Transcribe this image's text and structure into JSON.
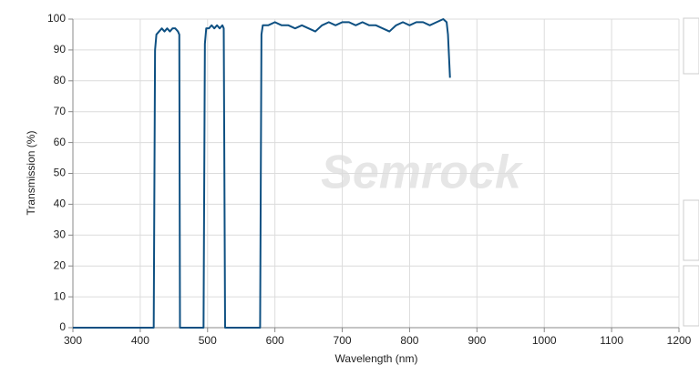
{
  "chart_data": {
    "type": "line",
    "watermark": "Semrock",
    "x_label": "Wavelength (nm)",
    "y_label": "Transmission (%)",
    "x": [
      300,
      420,
      422,
      424,
      428,
      432,
      436,
      440,
      444,
      448,
      452,
      456,
      458,
      459,
      494,
      496,
      498,
      502,
      506,
      510,
      514,
      518,
      522,
      524,
      526,
      578,
      580,
      582,
      590,
      600,
      610,
      620,
      630,
      640,
      650,
      660,
      670,
      680,
      690,
      700,
      710,
      720,
      730,
      740,
      750,
      760,
      770,
      780,
      790,
      800,
      810,
      820,
      830,
      840,
      850,
      855,
      857,
      860
    ],
    "values": [
      0,
      0,
      90,
      95,
      96,
      97,
      96,
      97,
      96,
      97,
      97,
      96,
      95,
      0,
      0,
      92,
      97,
      97,
      98,
      97,
      98,
      97,
      98,
      97,
      0,
      0,
      95,
      98,
      98,
      99,
      98,
      98,
      97,
      98,
      97,
      96,
      98,
      99,
      98,
      99,
      99,
      98,
      99,
      98,
      98,
      97,
      96,
      98,
      99,
      98,
      99,
      99,
      98,
      99,
      100,
      99,
      95,
      81
    ],
    "color": "#0e5082",
    "xlim": [
      300,
      1200
    ],
    "ylim": [
      0,
      100
    ],
    "xticks": [
      300,
      400,
      500,
      600,
      700,
      800,
      900,
      1000,
      1100,
      1200
    ],
    "yticks": [
      0,
      10,
      20,
      30,
      40,
      50,
      60,
      70,
      80,
      90,
      100
    ],
    "grid": true
  }
}
